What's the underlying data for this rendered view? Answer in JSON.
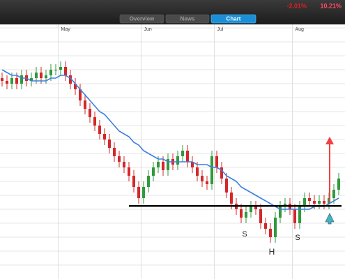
{
  "header": {
    "tabs": [
      "Overview",
      "News",
      "Chart"
    ],
    "active_tab": 2,
    "change": "-2.01%",
    "yield": "10.21%"
  },
  "chart_data": {
    "type": "candlestick",
    "months": [
      {
        "label": "May",
        "index": 12
      },
      {
        "label": "Jun",
        "index": 29
      },
      {
        "label": "Jul",
        "index": 44
      },
      {
        "label": "Aug",
        "index": 60
      }
    ],
    "open": [
      72,
      71,
      70,
      72,
      70,
      73,
      71,
      72,
      74,
      72,
      73,
      75,
      75,
      76,
      73,
      70,
      68,
      64,
      61,
      58,
      55,
      52,
      50,
      47,
      44,
      42,
      40,
      37,
      33,
      29,
      33,
      37,
      40,
      42,
      39,
      43,
      41,
      44,
      46,
      42,
      40,
      37,
      35,
      34,
      44,
      40,
      36,
      31,
      27,
      25,
      22,
      24,
      26,
      25,
      20,
      18,
      15,
      22,
      26,
      27,
      25,
      20,
      26,
      29,
      28,
      27,
      28,
      27,
      29,
      32
    ],
    "high": [
      74,
      73,
      74,
      74,
      75,
      75,
      74,
      76,
      76,
      75,
      77,
      77,
      78,
      78,
      75,
      72,
      70,
      66,
      63,
      60,
      57,
      54,
      52,
      49,
      46,
      44,
      42,
      39,
      35,
      35,
      39,
      42,
      44,
      44,
      45,
      45,
      46,
      48,
      48,
      44,
      42,
      39,
      37,
      46,
      46,
      42,
      38,
      33,
      29,
      27,
      26,
      28,
      28,
      27,
      22,
      20,
      24,
      28,
      29,
      29,
      27,
      28,
      31,
      31,
      30,
      30,
      30,
      31,
      34,
      38
    ],
    "low": [
      69,
      68,
      68,
      68,
      68,
      69,
      69,
      70,
      70,
      70,
      71,
      73,
      73,
      71,
      68,
      66,
      62,
      59,
      56,
      53,
      50,
      48,
      45,
      42,
      40,
      38,
      35,
      31,
      27,
      27,
      31,
      35,
      38,
      37,
      37,
      39,
      39,
      42,
      40,
      38,
      35,
      33,
      32,
      32,
      38,
      34,
      29,
      25,
      23,
      20,
      20,
      22,
      23,
      18,
      16,
      13,
      13,
      20,
      24,
      23,
      18,
      18,
      24,
      26,
      25,
      25,
      25,
      25,
      27,
      30
    ],
    "close": [
      71,
      70,
      72,
      70,
      73,
      71,
      72,
      74,
      72,
      73,
      75,
      75,
      76,
      73,
      70,
      68,
      64,
      61,
      58,
      55,
      52,
      50,
      47,
      44,
      42,
      40,
      37,
      33,
      29,
      33,
      37,
      40,
      42,
      39,
      43,
      41,
      44,
      46,
      42,
      40,
      37,
      35,
      34,
      44,
      40,
      36,
      31,
      27,
      25,
      22,
      24,
      26,
      25,
      20,
      18,
      15,
      22,
      26,
      27,
      25,
      20,
      26,
      29,
      28,
      27,
      28,
      27,
      29,
      32,
      36
    ],
    "moving_average": {
      "color": "#3b7fe0",
      "values": [
        75,
        74,
        73,
        73,
        72,
        72,
        71,
        71,
        71,
        71,
        72,
        72,
        73,
        73,
        72,
        70,
        68,
        66,
        64,
        62,
        60,
        59,
        57,
        55,
        53,
        52,
        51,
        49,
        48,
        46,
        45,
        44,
        43,
        43,
        42,
        42,
        42,
        42,
        42,
        42,
        41,
        41,
        41,
        40,
        40,
        39,
        37,
        36,
        35,
        33,
        32,
        31,
        30,
        29,
        28,
        27,
        26,
        25,
        25,
        25,
        25,
        25,
        25,
        25,
        26,
        26,
        26,
        27,
        28,
        29
      ]
    },
    "up_color": "#2f9a3c",
    "down_color": "#d2282a",
    "neckline": {
      "value": 26.2,
      "from": 26,
      "color": "#000000"
    },
    "annotations": [
      "S",
      "H",
      "S"
    ],
    "ylim": [
      0,
      92
    ],
    "yticks": [
      5,
      10,
      15,
      20,
      25,
      30,
      35,
      40,
      45,
      50,
      55,
      60,
      65,
      70,
      75,
      80,
      85,
      90
    ],
    "grid": true
  }
}
